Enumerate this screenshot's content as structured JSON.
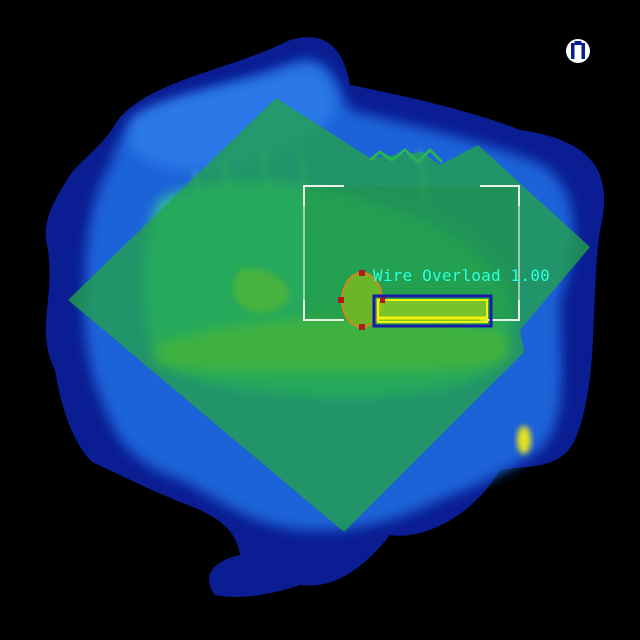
{
  "detection": {
    "label": "Wire Overload",
    "score": "1.00"
  },
  "colors": {
    "background": "#000000",
    "heat_low": "#0a1a8c",
    "heat_mid": "#1e6ee0",
    "heat_high": "#9ae02a",
    "overlay": "#22a34a",
    "label_text": "#33ffe6",
    "box_outer": "#1a1aa8",
    "box_inner": "#f2f20a",
    "frame": "#ffffff"
  },
  "icons": {
    "corner_logo": "thermal-camera-logo-icon"
  }
}
